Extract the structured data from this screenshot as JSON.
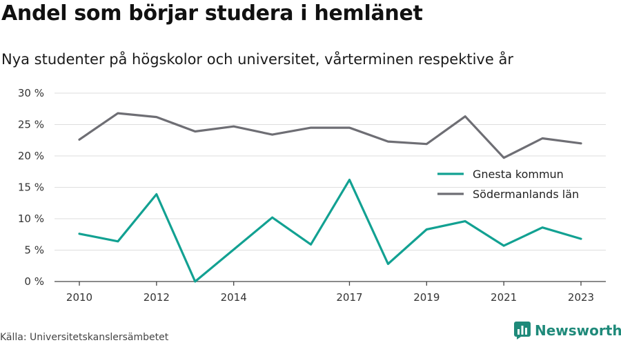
{
  "title": "Andel som börjar studera i hemlänet",
  "subtitle": "Nya studenter på högskolor och universitet, vårterminen respektive år",
  "source": "Källa: Universitetskanslersämbetet",
  "brand": {
    "name": "Newsworthy",
    "icon": "bar-chart-logo-icon",
    "color": "#1f8a7a"
  },
  "chart_data": {
    "type": "line",
    "x": [
      2010,
      2011,
      2012,
      2013,
      2014,
      2015,
      2016,
      2017,
      2018,
      2019,
      2020,
      2021,
      2022,
      2023
    ],
    "x_tick_labels": [
      "2010",
      "2012",
      "2014",
      "2017",
      "2019",
      "2021",
      "2023"
    ],
    "y_tick_labels": [
      "0 %",
      "5 %",
      "10 %",
      "15 %",
      "20 %",
      "25 %",
      "30 %"
    ],
    "ylim": [
      0,
      30
    ],
    "grid": true,
    "legend_position": "right",
    "series": [
      {
        "name": "Gnesta kommun",
        "color": "#12a192",
        "values": [
          7.6,
          6.4,
          13.9,
          0.0,
          5.1,
          10.2,
          5.9,
          16.2,
          2.8,
          8.3,
          9.6,
          5.7,
          8.6,
          6.8
        ]
      },
      {
        "name": "Södermanlands län",
        "color": "#6e6e74",
        "values": [
          22.6,
          26.8,
          26.2,
          23.9,
          24.7,
          23.4,
          24.5,
          24.5,
          22.3,
          21.9,
          26.3,
          19.7,
          22.8,
          22.0
        ]
      }
    ]
  }
}
